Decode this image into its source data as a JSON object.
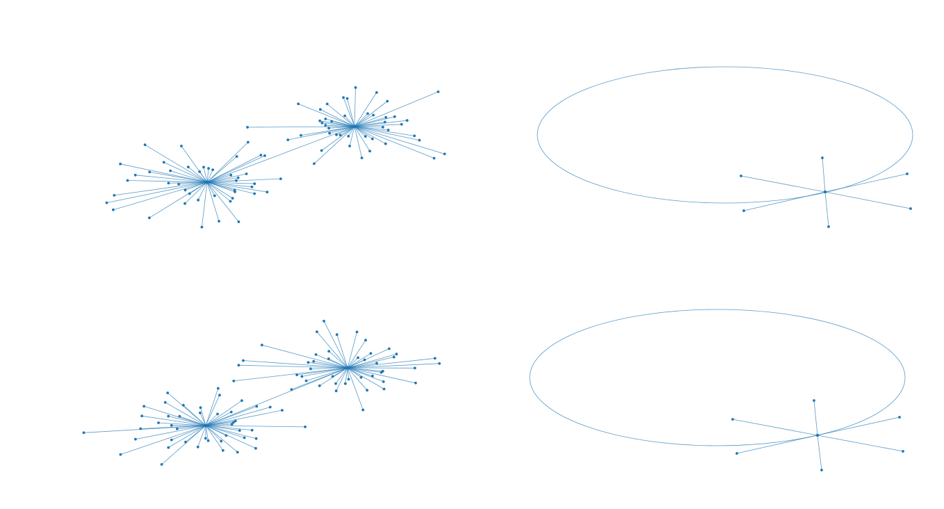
{
  "figure": {
    "panels": [
      {
        "name": "two-cluster-graph-top",
        "hubs": [
          {
            "cx": 298,
            "cy": 262,
            "radii_x": [
              178,
              168,
              150,
              140,
              102,
              65,
              50,
              35,
              30,
              22,
              18,
              12,
              60,
              70,
              90,
              100,
              110,
              45,
              55,
              25,
              80,
              95,
              75,
              58,
              42,
              68,
              30,
              38,
              85,
              62
            ],
            "seed": 1
          },
          {
            "cx": 510,
            "cy": 182,
            "radii_x": [
              178,
              168,
              150,
              140,
              102,
              65,
              50,
              35,
              30,
              22,
              18,
              12,
              60,
              70,
              90,
              100,
              110,
              45,
              55,
              25,
              80,
              95,
              75,
              58,
              42,
              68,
              30,
              38,
              85,
              62
            ],
            "seed": 2
          }
        ]
      },
      {
        "name": "loop-graph-top",
        "hub": {
          "x": 1187,
          "y": 276
        },
        "loop": {
          "cx": 1043,
          "cy": 194,
          "rx": 270,
          "ry": 98
        },
        "leaves": [
          [
            1066,
            253
          ],
          [
            1070,
            303
          ],
          [
            1183,
            227
          ],
          [
            1192,
            326
          ],
          [
            1305,
            250
          ],
          [
            1310,
            300
          ]
        ]
      },
      {
        "name": "two-cluster-graph-bottom",
        "hubs": [
          {
            "cx": 296,
            "cy": 612,
            "seed": 3
          },
          {
            "cx": 500,
            "cy": 529,
            "seed": 4
          }
        ]
      },
      {
        "name": "loop-graph-bottom",
        "hub": {
          "x": 1176,
          "y": 626
        },
        "loop": {
          "cx": 1032,
          "cy": 543,
          "rx": 270,
          "ry": 98
        },
        "leaves": [
          [
            1054,
            603
          ],
          [
            1060,
            652
          ],
          [
            1171,
            576
          ],
          [
            1182,
            676
          ],
          [
            1294,
            600
          ],
          [
            1299,
            649
          ]
        ]
      }
    ],
    "colors": {
      "edge": "#1f77b4",
      "node": "#1f77b4"
    }
  }
}
